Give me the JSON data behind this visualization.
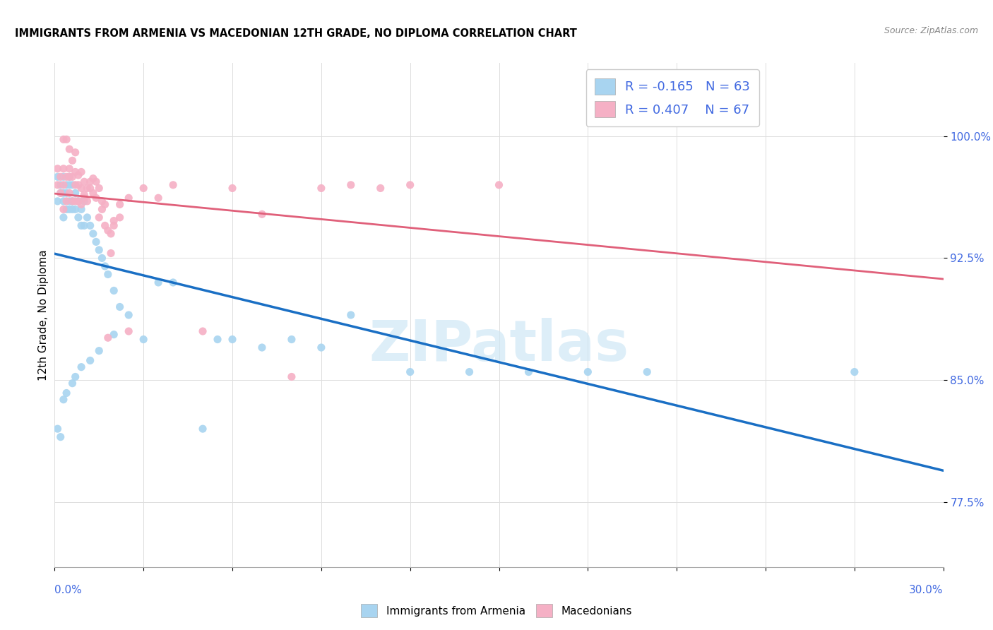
{
  "title": "IMMIGRANTS FROM ARMENIA VS MACEDONIAN 12TH GRADE, NO DIPLOMA CORRELATION CHART",
  "source": "Source: ZipAtlas.com",
  "ylabel": "12th Grade, No Diploma",
  "yticks": [
    0.775,
    0.85,
    0.925,
    1.0
  ],
  "ytick_labels": [
    "77.5%",
    "85.0%",
    "92.5%",
    "100.0%"
  ],
  "xmin": 0.0,
  "xmax": 0.3,
  "ymin": 0.735,
  "ymax": 1.045,
  "armenia_color": "#a8d4f0",
  "macedonia_color": "#f5b0c5",
  "armenia_R": -0.165,
  "armenia_N": 63,
  "macedonia_R": 0.407,
  "macedonia_N": 67,
  "armenia_trend_color": "#1a6fc4",
  "macedonia_trend_color": "#e0607a",
  "label_color": "#4169E1",
  "armenia_scatter_x": [
    0.001,
    0.001,
    0.001,
    0.002,
    0.002,
    0.002,
    0.003,
    0.003,
    0.003,
    0.003,
    0.004,
    0.004,
    0.004,
    0.005,
    0.005,
    0.005,
    0.005,
    0.006,
    0.006,
    0.006,
    0.007,
    0.007,
    0.008,
    0.008,
    0.009,
    0.009,
    0.01,
    0.01,
    0.011,
    0.012,
    0.013,
    0.014,
    0.015,
    0.016,
    0.017,
    0.018,
    0.02,
    0.022,
    0.025,
    0.03,
    0.035,
    0.04,
    0.05,
    0.055,
    0.06,
    0.07,
    0.08,
    0.09,
    0.1,
    0.12,
    0.14,
    0.16,
    0.18,
    0.2,
    0.27,
    0.003,
    0.004,
    0.006,
    0.007,
    0.009,
    0.012,
    0.015,
    0.02
  ],
  "armenia_scatter_y": [
    0.82,
    0.96,
    0.975,
    0.815,
    0.965,
    0.97,
    0.95,
    0.96,
    0.975,
    0.965,
    0.965,
    0.97,
    0.955,
    0.96,
    0.97,
    0.975,
    0.955,
    0.96,
    0.97,
    0.955,
    0.955,
    0.965,
    0.95,
    0.96,
    0.945,
    0.955,
    0.945,
    0.96,
    0.95,
    0.945,
    0.94,
    0.935,
    0.93,
    0.925,
    0.92,
    0.915,
    0.905,
    0.895,
    0.89,
    0.875,
    0.91,
    0.91,
    0.82,
    0.875,
    0.875,
    0.87,
    0.875,
    0.87,
    0.89,
    0.855,
    0.855,
    0.855,
    0.855,
    0.855,
    0.855,
    0.838,
    0.842,
    0.848,
    0.852,
    0.858,
    0.862,
    0.868,
    0.878
  ],
  "macedonia_scatter_x": [
    0.001,
    0.001,
    0.002,
    0.002,
    0.003,
    0.003,
    0.003,
    0.004,
    0.004,
    0.005,
    0.005,
    0.005,
    0.006,
    0.006,
    0.007,
    0.007,
    0.007,
    0.008,
    0.008,
    0.009,
    0.009,
    0.01,
    0.01,
    0.011,
    0.012,
    0.013,
    0.014,
    0.015,
    0.016,
    0.017,
    0.018,
    0.019,
    0.02,
    0.022,
    0.025,
    0.03,
    0.035,
    0.04,
    0.05,
    0.06,
    0.07,
    0.08,
    0.09,
    0.1,
    0.11,
    0.12,
    0.15,
    0.003,
    0.004,
    0.005,
    0.006,
    0.007,
    0.008,
    0.009,
    0.01,
    0.011,
    0.012,
    0.013,
    0.014,
    0.015,
    0.016,
    0.017,
    0.018,
    0.019,
    0.02,
    0.022,
    0.025
  ],
  "macedonia_scatter_y": [
    0.97,
    0.98,
    0.965,
    0.975,
    0.955,
    0.97,
    0.98,
    0.96,
    0.975,
    0.965,
    0.975,
    0.98,
    0.96,
    0.975,
    0.96,
    0.97,
    0.978,
    0.96,
    0.97,
    0.958,
    0.968,
    0.962,
    0.972,
    0.96,
    0.968,
    0.965,
    0.962,
    0.95,
    0.955,
    0.945,
    0.942,
    0.94,
    0.945,
    0.95,
    0.88,
    0.968,
    0.962,
    0.97,
    0.88,
    0.968,
    0.952,
    0.852,
    0.968,
    0.97,
    0.968,
    0.97,
    0.97,
    0.998,
    0.998,
    0.992,
    0.985,
    0.99,
    0.976,
    0.978,
    0.964,
    0.968,
    0.972,
    0.974,
    0.972,
    0.968,
    0.96,
    0.958,
    0.876,
    0.928,
    0.948,
    0.958,
    0.962
  ]
}
